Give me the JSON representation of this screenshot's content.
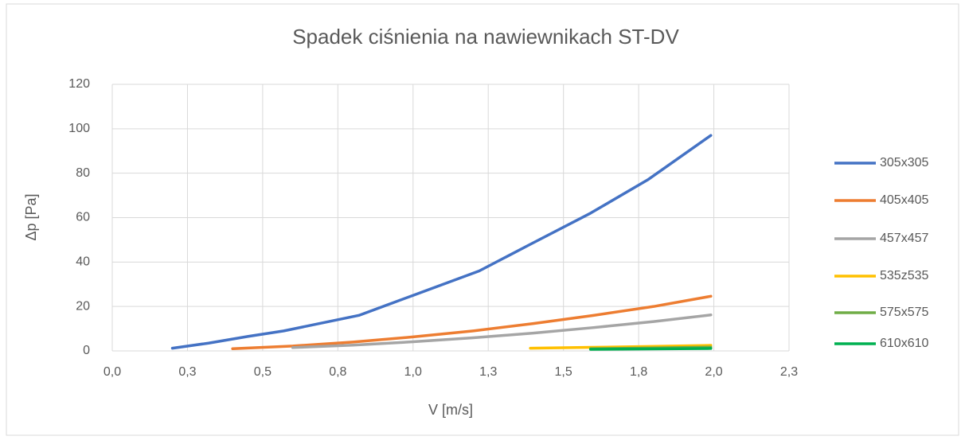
{
  "chart_data": {
    "type": "line",
    "title": "Spadek ciśnienia na nawiewnikach ST-DV",
    "x_label": "V [m/s]",
    "y_label": "Δp [Pa]",
    "xlim": [
      0,
      2.25
    ],
    "xticks": [
      {
        "value": 0,
        "label": "0,0"
      },
      {
        "value": 0.25,
        "label": "0,3"
      },
      {
        "value": 0.5,
        "label": "0,5"
      },
      {
        "value": 0.75,
        "label": "0,8"
      },
      {
        "value": 1,
        "label": "1,0"
      },
      {
        "value": 1.25,
        "label": "1,3"
      },
      {
        "value": 1.5,
        "label": "1,5"
      },
      {
        "value": 1.75,
        "label": "1,8"
      },
      {
        "value": 2,
        "label": "2,0"
      },
      {
        "value": 2.25,
        "label": "2,3"
      }
    ],
    "ylim": [
      0,
      120
    ],
    "yticks": [
      0,
      20,
      40,
      60,
      80,
      100,
      120
    ],
    "grid": true,
    "legend": "right",
    "series": [
      {
        "name": "305x305",
        "color": "#4472c4",
        "x": [
          0.2,
          0.32,
          0.45,
          0.57,
          0.82,
          1.0,
          1.22,
          1.39,
          1.59,
          1.78,
          1.99
        ],
        "values": [
          1.2,
          3.5,
          6.5,
          9,
          16,
          25,
          36,
          48,
          62,
          77,
          97
        ]
      },
      {
        "name": "405x405",
        "color": "#ed7d31",
        "x": [
          0.4,
          0.6,
          0.8,
          1.0,
          1.2,
          1.4,
          1.6,
          1.8,
          1.99
        ],
        "values": [
          1,
          2.2,
          4,
          6.3,
          9,
          12.3,
          16,
          20,
          24.6
        ]
      },
      {
        "name": "457x457",
        "color": "#a5a5a5",
        "x": [
          0.6,
          0.8,
          1.0,
          1.2,
          1.4,
          1.6,
          1.8,
          1.99
        ],
        "values": [
          1.5,
          2.6,
          4.1,
          5.9,
          8,
          10.5,
          13.2,
          16.2
        ]
      },
      {
        "name": "535z535",
        "color": "#ffc000",
        "x": [
          1.39,
          1.59,
          1.79,
          1.99
        ],
        "values": [
          1.2,
          1.6,
          2,
          2.5
        ]
      },
      {
        "name": "575x575",
        "color": "#70ad47",
        "x": [
          1.59,
          1.79,
          1.99
        ],
        "values": [
          1.0,
          1.3,
          1.7
        ]
      },
      {
        "name": "610x610",
        "color": "#00b050",
        "x": [
          1.59,
          1.79,
          1.99
        ],
        "values": [
          0.7,
          0.9,
          1.1
        ]
      }
    ]
  }
}
